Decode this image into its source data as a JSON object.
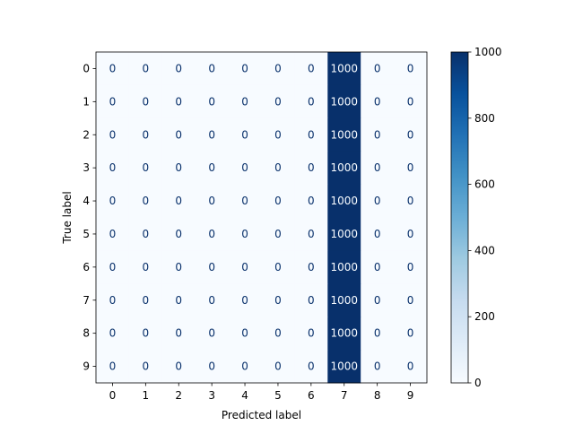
{
  "chart_data": {
    "type": "heatmap",
    "title": "",
    "xlabel": "Predicted label",
    "ylabel": "True label",
    "x_categories": [
      "0",
      "1",
      "2",
      "3",
      "4",
      "5",
      "6",
      "7",
      "8",
      "9"
    ],
    "y_categories": [
      "0",
      "1",
      "2",
      "3",
      "4",
      "5",
      "6",
      "7",
      "8",
      "9"
    ],
    "values": [
      [
        0,
        0,
        0,
        0,
        0,
        0,
        0,
        1000,
        0,
        0
      ],
      [
        0,
        0,
        0,
        0,
        0,
        0,
        0,
        1000,
        0,
        0
      ],
      [
        0,
        0,
        0,
        0,
        0,
        0,
        0,
        1000,
        0,
        0
      ],
      [
        0,
        0,
        0,
        0,
        0,
        0,
        0,
        1000,
        0,
        0
      ],
      [
        0,
        0,
        0,
        0,
        0,
        0,
        0,
        1000,
        0,
        0
      ],
      [
        0,
        0,
        0,
        0,
        0,
        0,
        0,
        1000,
        0,
        0
      ],
      [
        0,
        0,
        0,
        0,
        0,
        0,
        0,
        1000,
        0,
        0
      ],
      [
        0,
        0,
        0,
        0,
        0,
        0,
        0,
        1000,
        0,
        0
      ],
      [
        0,
        0,
        0,
        0,
        0,
        0,
        0,
        1000,
        0,
        0
      ],
      [
        0,
        0,
        0,
        0,
        0,
        0,
        0,
        1000,
        0,
        0
      ]
    ],
    "colormap": "Blues",
    "colorbar": {
      "range": [
        0,
        1000
      ],
      "ticks": [
        0,
        200,
        400,
        600,
        800,
        1000
      ]
    },
    "colors": {
      "low": "#f7fbff",
      "high": "#08306b",
      "low_text": "#08306b",
      "high_text": "#f7fbff"
    },
    "grid": false,
    "legend": "none"
  }
}
